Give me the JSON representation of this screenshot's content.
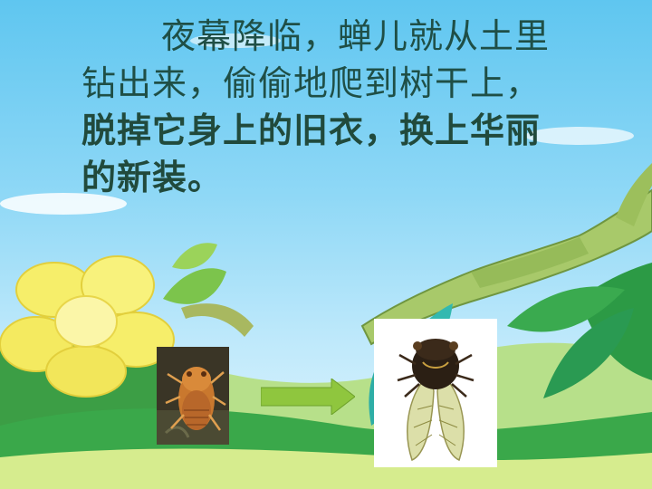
{
  "text": {
    "lines": [
      "夜幕降临，蝉儿就从土里",
      "钻出来，偷偷地爬到树干上，",
      "脱掉它身上的旧衣，换上华丽",
      "的新装。"
    ]
  },
  "images": {
    "nymph": "cicada-nymph-photo",
    "adult": "adult-cicada-photo"
  },
  "arrow": {
    "icon": "right-arrow-icon",
    "color": "#8fc63e"
  },
  "colors": {
    "sky_top": "#5fc6f0",
    "sky_bottom": "#e6f7fd",
    "text": "#1f4f46",
    "grass": "#3aa84a"
  }
}
